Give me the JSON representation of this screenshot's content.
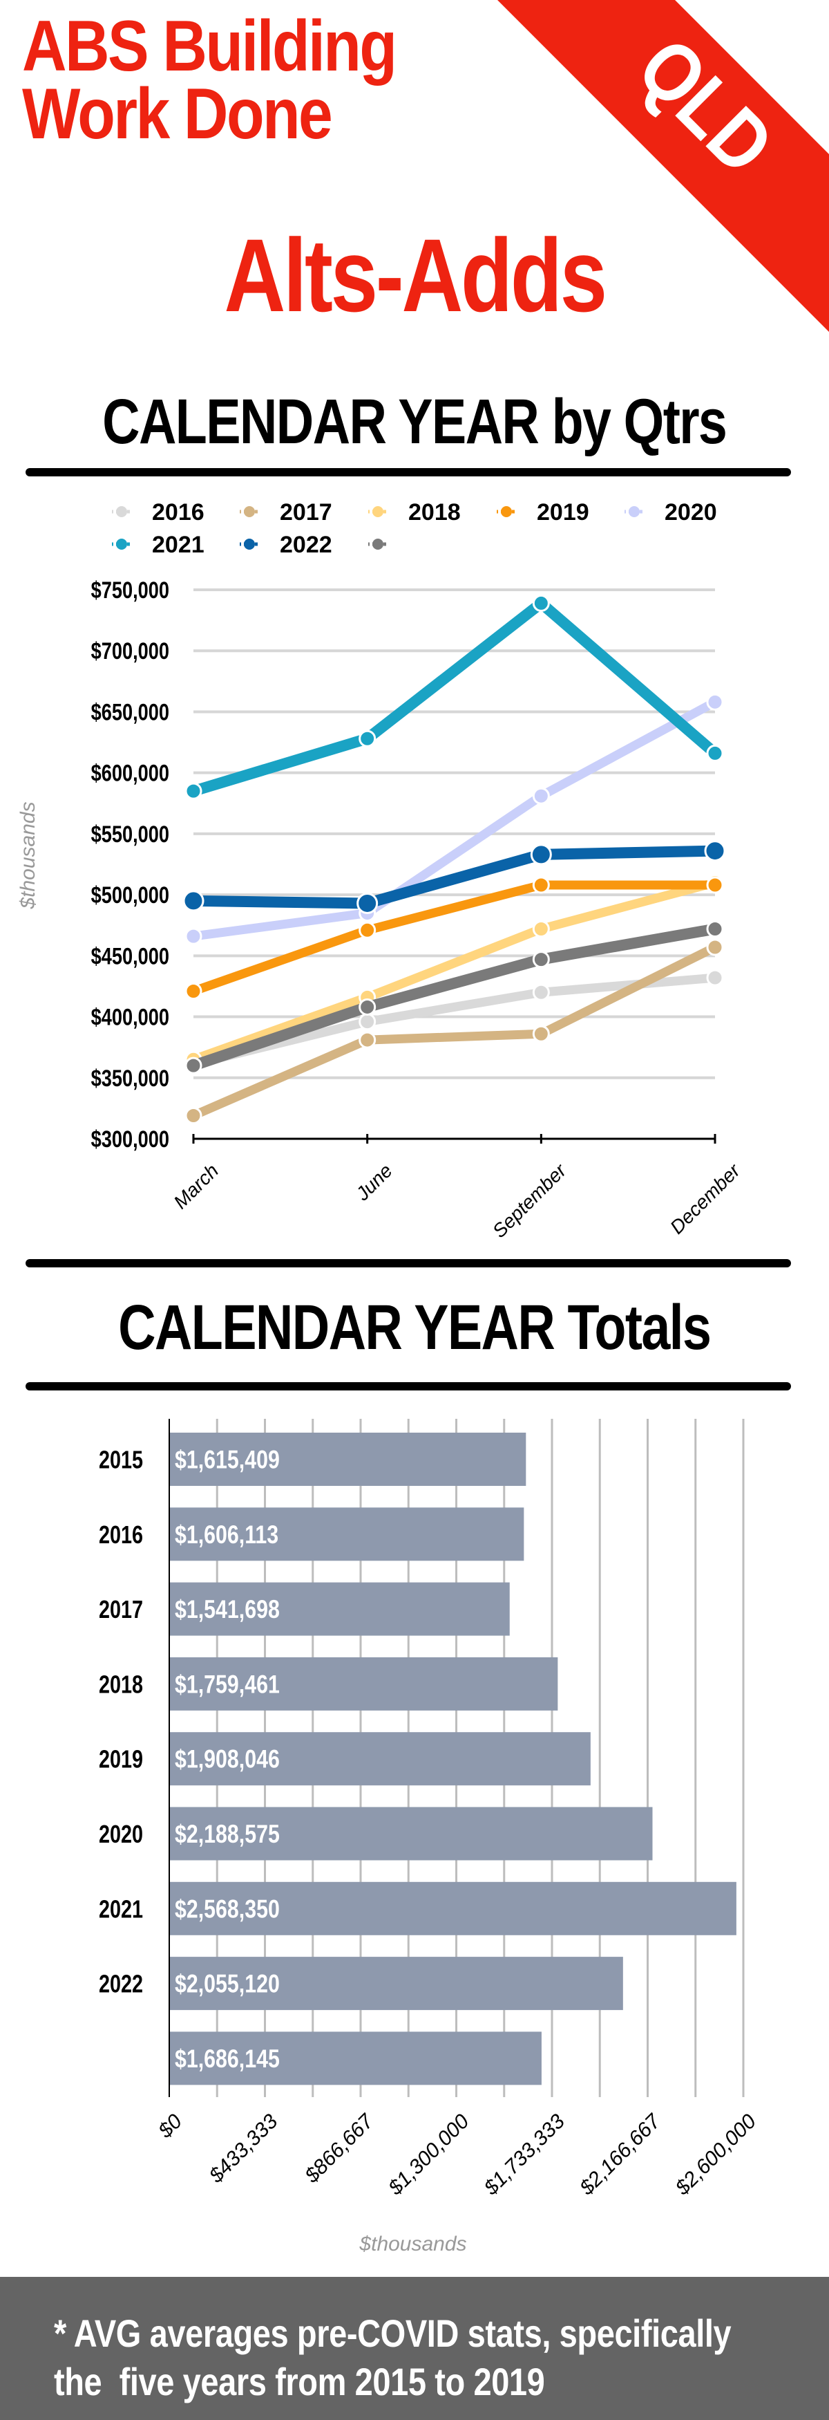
{
  "header": {
    "title_line1": "ABS Building",
    "title_line2": "Work Done",
    "badge": "QLD",
    "subtitle": "Alts-Adds",
    "brand_color": "#EE2311"
  },
  "sections": {
    "quarterly_title": "CALENDAR YEAR by Qtrs",
    "totals_title": "CALENDAR YEAR Totals"
  },
  "footer": {
    "note": "* AVG averages pre-COVID stats, specifically\nthe  five years from 2015 to 2019"
  },
  "chart_data": [
    {
      "type": "line",
      "title": "CALENDAR YEAR by Qtrs",
      "xlabel": "",
      "ylabel": "$thousands",
      "x": [
        "March",
        "June",
        "September",
        "December"
      ],
      "ylim": [
        300000,
        750000
      ],
      "yticks": [
        300000,
        350000,
        400000,
        450000,
        500000,
        550000,
        600000,
        650000,
        700000,
        750000
      ],
      "ytick_labels": [
        "$300,000",
        "$350,000",
        "$400,000",
        "$450,000",
        "$500,000",
        "$550,000",
        "$600,000",
        "$650,000",
        "$700,000",
        "$750,000"
      ],
      "grid": true,
      "legend": "top",
      "series": [
        {
          "name": "2016",
          "color": "#D9D9D9",
          "values": [
            361000,
            396000,
            420000,
            432000
          ]
        },
        {
          "name": "2017",
          "color": "#D4B483",
          "values": [
            319000,
            381000,
            386000,
            457000
          ]
        },
        {
          "name": "2018",
          "color": "#FFD57E",
          "values": [
            365000,
            416000,
            472000,
            510000
          ]
        },
        {
          "name": "2019",
          "color": "#F9970E",
          "values": [
            421000,
            471000,
            508000,
            508000
          ]
        },
        {
          "name": "2020",
          "color": "#C9CFFA",
          "values": [
            466000,
            485000,
            581000,
            658000
          ]
        },
        {
          "name": "2021",
          "color": "#1AA3C4",
          "values": [
            585000,
            628000,
            739000,
            616000
          ]
        },
        {
          "name": "2022",
          "color": "#0A63A8",
          "values": [
            495000,
            493000,
            533000,
            536000
          ]
        },
        {
          "name": "",
          "color": "#7A7A7A",
          "values": [
            360000,
            408000,
            447000,
            472000
          ]
        }
      ]
    },
    {
      "type": "bar",
      "orientation": "horizontal",
      "title": "CALENDAR YEAR Totals",
      "xlabel": "$thousands",
      "ylabel": "",
      "categories": [
        "2015",
        "2016",
        "2017",
        "2018",
        "2019",
        "2020",
        "2021",
        "2022",
        ""
      ],
      "values": [
        1615409,
        1606113,
        1541698,
        1759461,
        1908046,
        2188575,
        2568350,
        2055120,
        1686145
      ],
      "data_labels": [
        "$1,615,409",
        "$1,606,113",
        "$1,541,698",
        "$1,759,461",
        "$1,908,046",
        "$2,188,575",
        "$2,568,350",
        "$2,055,120",
        "$1,686,145"
      ],
      "xlim": [
        0,
        2600000
      ],
      "xticks": [
        0,
        433333,
        866667,
        1300000,
        1733333,
        2166667,
        2600000
      ],
      "xtick_labels": [
        "$0",
        "$433,333",
        "$866,667",
        "$1,300,000",
        "$1,733,333",
        "$2,166,667",
        "$2,600,000"
      ],
      "minor_gridlines": 12,
      "grid": true,
      "bar_color": "#8E99AD"
    }
  ]
}
